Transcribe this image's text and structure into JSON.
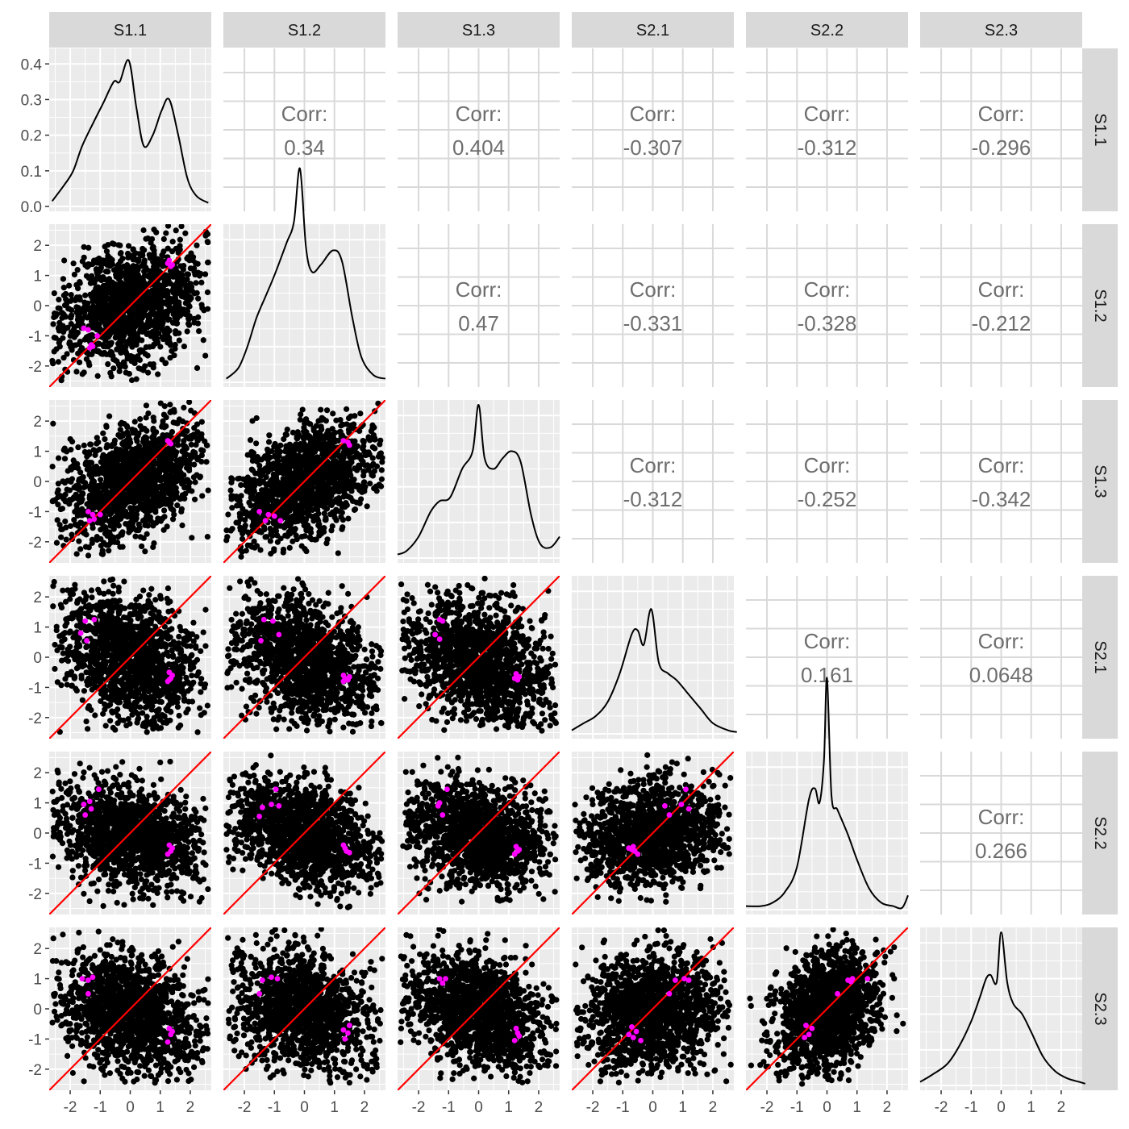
{
  "chart_data": {
    "type": "scatter",
    "variables": [
      "S1.1",
      "S1.2",
      "S1.3",
      "S2.1",
      "S2.2",
      "S2.3"
    ],
    "corr_label": "Corr:",
    "correlations": [
      {
        "row": "S1.1",
        "col": "S1.2",
        "text": "0.34"
      },
      {
        "row": "S1.1",
        "col": "S1.3",
        "text": "0.404"
      },
      {
        "row": "S1.1",
        "col": "S2.1",
        "text": "-0.307"
      },
      {
        "row": "S1.1",
        "col": "S2.2",
        "text": "-0.312"
      },
      {
        "row": "S1.1",
        "col": "S2.3",
        "text": "-0.296"
      },
      {
        "row": "S1.2",
        "col": "S1.3",
        "text": "0.47"
      },
      {
        "row": "S1.2",
        "col": "S2.1",
        "text": "-0.331"
      },
      {
        "row": "S1.2",
        "col": "S2.2",
        "text": "-0.328"
      },
      {
        "row": "S1.2",
        "col": "S2.3",
        "text": "-0.212"
      },
      {
        "row": "S1.3",
        "col": "S2.1",
        "text": "-0.312"
      },
      {
        "row": "S1.3",
        "col": "S2.2",
        "text": "-0.252"
      },
      {
        "row": "S1.3",
        "col": "S2.3",
        "text": "-0.342"
      },
      {
        "row": "S2.1",
        "col": "S2.2",
        "text": "0.161"
      },
      {
        "row": "S2.1",
        "col": "S2.3",
        "text": "0.0648"
      },
      {
        "row": "S2.2",
        "col": "S2.3",
        "text": "0.266"
      }
    ],
    "axis_range": [
      -2.7,
      2.7
    ],
    "ticks": [
      -2,
      -1,
      0,
      1,
      2
    ],
    "tick_labels": [
      "-2",
      "-1",
      "0",
      "1",
      "2"
    ],
    "density_ylim": [
      0,
      0.43
    ],
    "density_ticks": [
      0.0,
      0.1,
      0.2,
      0.3,
      0.4
    ],
    "density_tick_labels": [
      "0.0",
      "0.1",
      "0.2",
      "0.3",
      "0.4"
    ],
    "densities": {
      "S1.1": {
        "x": [
          -2.6,
          -2.2,
          -1.9,
          -1.6,
          -1.2,
          -0.9,
          -0.55,
          -0.35,
          -0.05,
          0.2,
          0.45,
          0.75,
          1.05,
          1.3,
          1.6,
          1.9,
          2.2,
          2.6
        ],
        "y": [
          0.015,
          0.06,
          0.1,
          0.17,
          0.24,
          0.29,
          0.35,
          0.35,
          0.41,
          0.28,
          0.17,
          0.2,
          0.27,
          0.3,
          0.2,
          0.08,
          0.03,
          0.01
        ]
      },
      "S1.2": {
        "x": [
          -2.6,
          -2.2,
          -1.9,
          -1.6,
          -1.3,
          -1.0,
          -0.6,
          -0.35,
          -0.15,
          0.05,
          0.25,
          0.55,
          0.95,
          1.25,
          1.6,
          1.9,
          2.3,
          2.7
        ],
        "y": [
          0.01,
          0.04,
          0.1,
          0.18,
          0.24,
          0.3,
          0.39,
          0.45,
          0.6,
          0.38,
          0.31,
          0.33,
          0.37,
          0.34,
          0.18,
          0.07,
          0.02,
          0.01
        ]
      },
      "S1.3": {
        "x": [
          -2.7,
          -2.4,
          -2.0,
          -1.6,
          -1.3,
          -0.95,
          -0.55,
          -0.2,
          0.0,
          0.2,
          0.5,
          0.8,
          1.1,
          1.4,
          1.75,
          2.05,
          2.4,
          2.7
        ],
        "y": [
          0.01,
          0.02,
          0.06,
          0.13,
          0.16,
          0.17,
          0.25,
          0.3,
          0.43,
          0.28,
          0.25,
          0.28,
          0.3,
          0.27,
          0.12,
          0.04,
          0.03,
          0.06
        ]
      },
      "S2.1": {
        "x": [
          -2.7,
          -2.3,
          -1.9,
          -1.5,
          -1.1,
          -0.7,
          -0.5,
          -0.3,
          -0.05,
          0.2,
          0.5,
          0.8,
          1.2,
          1.6,
          2.0,
          2.5,
          2.8
        ],
        "y": [
          0.01,
          0.03,
          0.05,
          0.09,
          0.17,
          0.28,
          0.29,
          0.25,
          0.35,
          0.2,
          0.17,
          0.15,
          0.11,
          0.07,
          0.03,
          0.01,
          0.005
        ]
      },
      "S2.2": {
        "x": [
          -2.7,
          -2.2,
          -1.8,
          -1.4,
          -1.0,
          -0.6,
          -0.4,
          -0.25,
          -0.1,
          0.0,
          0.15,
          0.35,
          0.7,
          1.0,
          1.4,
          1.8,
          2.2,
          2.5,
          2.7
        ],
        "y": [
          0.01,
          0.01,
          0.02,
          0.05,
          0.12,
          0.31,
          0.34,
          0.3,
          0.42,
          0.65,
          0.32,
          0.28,
          0.21,
          0.14,
          0.06,
          0.02,
          0.01,
          0.005,
          0.04
        ]
      },
      "S2.3": {
        "x": [
          -2.7,
          -2.3,
          -1.8,
          -1.4,
          -1.0,
          -0.7,
          -0.5,
          -0.35,
          -0.15,
          0.0,
          0.2,
          0.4,
          0.7,
          1.0,
          1.4,
          1.8,
          2.2,
          2.6,
          2.8
        ],
        "y": [
          0.01,
          0.03,
          0.06,
          0.11,
          0.18,
          0.25,
          0.3,
          0.31,
          0.29,
          0.43,
          0.29,
          0.23,
          0.2,
          0.15,
          0.08,
          0.04,
          0.02,
          0.01,
          0.005
        ]
      }
    },
    "scatter_clouds": {
      "S1.2|S1.1": {
        "cx": 0.0,
        "cy": 0.0,
        "sx": 1.25,
        "sy": 1.0,
        "rho": 0.34
      },
      "S1.3|S1.1": {
        "cx": 0.0,
        "cy": 0.0,
        "sx": 1.25,
        "sy": 1.0,
        "rho": 0.38
      },
      "S1.3|S1.2": {
        "cx": 0.0,
        "cy": 0.0,
        "sx": 1.2,
        "sy": 1.0,
        "rho": 0.45
      },
      "S2.1|S1.1": {
        "cx": 0.0,
        "cy": -0.1,
        "sx": 1.2,
        "sy": 1.05,
        "rho": -0.3
      },
      "S2.1|S1.2": {
        "cx": 0.0,
        "cy": -0.1,
        "sx": 1.2,
        "sy": 1.05,
        "rho": -0.33
      },
      "S2.1|S1.3": {
        "cx": 0.0,
        "cy": -0.1,
        "sx": 1.2,
        "sy": 1.05,
        "rho": -0.31
      },
      "S2.2|S1.1": {
        "cx": 0.0,
        "cy": -0.05,
        "sx": 1.2,
        "sy": 0.85,
        "rho": -0.31
      },
      "S2.2|S1.2": {
        "cx": 0.0,
        "cy": -0.05,
        "sx": 1.2,
        "sy": 0.85,
        "rho": -0.33
      },
      "S2.2|S1.3": {
        "cx": 0.0,
        "cy": -0.05,
        "sx": 1.2,
        "sy": 0.85,
        "rho": -0.25
      },
      "S2.2|S2.1": {
        "cx": 0.0,
        "cy": 0.0,
        "sx": 1.15,
        "sy": 0.85,
        "rho": 0.16
      },
      "S2.3|S1.1": {
        "cx": 0.0,
        "cy": -0.1,
        "sx": 1.2,
        "sy": 1.0,
        "rho": -0.3
      },
      "S2.3|S1.2": {
        "cx": 0.0,
        "cy": -0.1,
        "sx": 1.2,
        "sy": 1.0,
        "rho": -0.21
      },
      "S2.3|S1.3": {
        "cx": 0.0,
        "cy": -0.1,
        "sx": 1.2,
        "sy": 1.0,
        "rho": -0.34
      },
      "S2.3|S2.1": {
        "cx": 0.0,
        "cy": -0.1,
        "sx": 1.2,
        "sy": 1.0,
        "rho": 0.06
      },
      "S2.3|S2.2": {
        "cx": 0.0,
        "cy": -0.1,
        "sx": 0.85,
        "sy": 1.0,
        "rho": 0.27
      }
    },
    "highlighted_points": {
      "S1.2|S1.1": [
        [
          1.3,
          1.5
        ],
        [
          1.35,
          1.3
        ],
        [
          1.25,
          1.4
        ],
        [
          1.4,
          1.35
        ],
        [
          -1.55,
          -0.75
        ],
        [
          -1.4,
          -0.8
        ],
        [
          -1.1,
          -1.0
        ],
        [
          -1.3,
          -1.3
        ],
        [
          -1.35,
          -1.4
        ],
        [
          -1.25,
          -1.35
        ]
      ],
      "S1.3|S1.1": [
        [
          1.3,
          1.3
        ],
        [
          1.35,
          1.25
        ],
        [
          1.25,
          1.35
        ],
        [
          -1.4,
          -1.0
        ],
        [
          -1.25,
          -1.1
        ],
        [
          -1.0,
          -1.1
        ],
        [
          -1.35,
          -1.3
        ],
        [
          -1.2,
          -1.25
        ]
      ],
      "S1.3|S1.2": [
        [
          1.3,
          1.35
        ],
        [
          1.45,
          1.3
        ],
        [
          1.5,
          1.2
        ],
        [
          -1.5,
          -1.0
        ],
        [
          -1.2,
          -1.1
        ],
        [
          -1.0,
          -1.15
        ],
        [
          -0.8,
          -1.3
        ],
        [
          -1.3,
          -1.3
        ]
      ],
      "S2.1|S1.1": [
        [
          -1.5,
          1.2
        ],
        [
          -1.2,
          1.25
        ],
        [
          -1.65,
          0.8
        ],
        [
          -1.45,
          0.55
        ],
        [
          1.3,
          -0.5
        ],
        [
          1.35,
          -0.7
        ],
        [
          1.25,
          -0.8
        ],
        [
          1.4,
          -0.6
        ],
        [
          1.3,
          -0.75
        ]
      ],
      "S2.1|S1.2": [
        [
          -1.35,
          1.25
        ],
        [
          -1.05,
          1.2
        ],
        [
          -0.85,
          0.75
        ],
        [
          -1.45,
          0.55
        ],
        [
          1.3,
          -0.6
        ],
        [
          1.45,
          -0.75
        ],
        [
          1.3,
          -0.8
        ],
        [
          1.5,
          -0.65
        ],
        [
          1.35,
          -0.7
        ]
      ],
      "S2.1|S1.3": [
        [
          -1.3,
          1.25
        ],
        [
          -1.2,
          1.2
        ],
        [
          -1.45,
          0.75
        ],
        [
          -1.3,
          0.6
        ],
        [
          1.25,
          -0.55
        ],
        [
          1.3,
          -0.75
        ],
        [
          1.2,
          -0.7
        ],
        [
          1.35,
          -0.65
        ]
      ],
      "S2.2|S1.1": [
        [
          -1.55,
          0.95
        ],
        [
          -1.35,
          1.05
        ],
        [
          -1.3,
          0.8
        ],
        [
          -1.5,
          0.6
        ],
        [
          -1.05,
          1.45
        ],
        [
          1.3,
          -0.4
        ],
        [
          1.35,
          -0.6
        ],
        [
          1.25,
          -0.7
        ],
        [
          1.4,
          -0.5
        ]
      ],
      "S2.2|S1.2": [
        [
          -1.4,
          0.85
        ],
        [
          -1.1,
          0.95
        ],
        [
          -1.5,
          0.55
        ],
        [
          -0.95,
          1.45
        ],
        [
          -0.85,
          0.9
        ],
        [
          1.3,
          -0.4
        ],
        [
          1.4,
          -0.6
        ],
        [
          1.5,
          -0.65
        ],
        [
          1.35,
          -0.5
        ]
      ],
      "S2.2|S1.3": [
        [
          -1.3,
          1.0
        ],
        [
          -1.35,
          0.9
        ],
        [
          -1.2,
          0.6
        ],
        [
          -1.05,
          1.45
        ],
        [
          1.25,
          -0.45
        ],
        [
          1.3,
          -0.6
        ],
        [
          1.2,
          -0.7
        ],
        [
          1.35,
          -0.55
        ]
      ],
      "S2.2|S2.1": [
        [
          -0.8,
          -0.5
        ],
        [
          -0.7,
          -0.55
        ],
        [
          -0.6,
          -0.6
        ],
        [
          -0.5,
          -0.7
        ],
        [
          0.4,
          0.9
        ],
        [
          0.55,
          0.6
        ],
        [
          0.95,
          0.95
        ],
        [
          1.1,
          1.45
        ],
        [
          1.2,
          0.8
        ],
        [
          -0.65,
          -0.45
        ]
      ],
      "S2.3|S1.1": [
        [
          -1.6,
          1.0
        ],
        [
          -1.4,
          0.95
        ],
        [
          -1.25,
          1.05
        ],
        [
          -1.4,
          0.5
        ],
        [
          1.3,
          -0.65
        ],
        [
          1.35,
          -0.85
        ],
        [
          1.25,
          -1.1
        ],
        [
          1.4,
          -0.75
        ]
      ],
      "S2.3|S1.2": [
        [
          -1.4,
          0.95
        ],
        [
          -1.1,
          1.05
        ],
        [
          -0.9,
          1.0
        ],
        [
          -1.5,
          0.5
        ],
        [
          1.3,
          -0.7
        ],
        [
          1.45,
          -0.8
        ],
        [
          1.35,
          -1.0
        ],
        [
          1.5,
          -0.55
        ]
      ],
      "S2.3|S1.3": [
        [
          -1.3,
          1.0
        ],
        [
          -1.1,
          1.0
        ],
        [
          -1.2,
          0.85
        ],
        [
          1.25,
          -0.65
        ],
        [
          1.3,
          -0.8
        ],
        [
          1.2,
          -1.05
        ],
        [
          1.35,
          -0.9
        ]
      ],
      "S2.3|S2.1": [
        [
          -0.8,
          -0.85
        ],
        [
          -0.65,
          -0.95
        ],
        [
          -0.55,
          -0.75
        ],
        [
          -0.4,
          -1.05
        ],
        [
          0.55,
          0.5
        ],
        [
          0.75,
          0.95
        ],
        [
          1.05,
          1.0
        ],
        [
          1.2,
          0.95
        ],
        [
          -0.7,
          -0.6
        ]
      ],
      "S2.3|S2.2": [
        [
          -0.75,
          -0.95
        ],
        [
          -0.6,
          -0.85
        ],
        [
          -0.5,
          -0.65
        ],
        [
          -0.7,
          -0.55
        ],
        [
          0.35,
          0.5
        ],
        [
          0.7,
          0.95
        ],
        [
          0.85,
          1.0
        ],
        [
          1.35,
          1.0
        ],
        [
          0.8,
          0.9
        ]
      ]
    },
    "grid": true,
    "reference_line": {
      "slope": 1,
      "intercept": 0,
      "color": "#ff0000"
    },
    "point_color": "#000000",
    "highlight_color": "#ff00ff",
    "density_line_color": "#000000",
    "panel_background": "#ebebeb",
    "strip_background": "#d9d9d9"
  }
}
